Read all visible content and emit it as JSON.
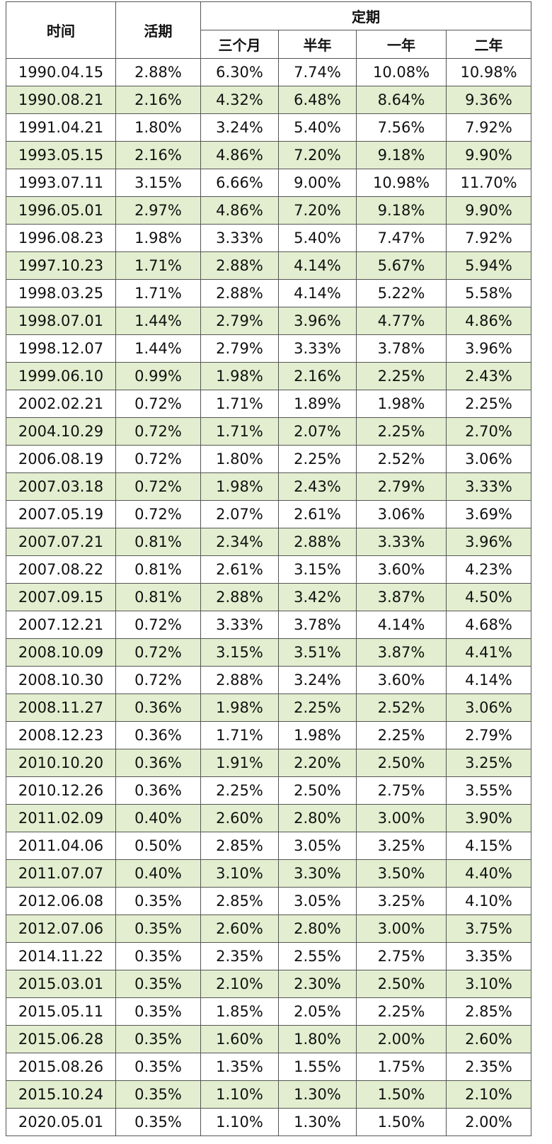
{
  "table": {
    "header": {
      "time": "时间",
      "demand": "活期",
      "fixed": "定期",
      "terms": [
        "三个月",
        "半年",
        "一年",
        "二年"
      ]
    },
    "rows": [
      [
        "1990.04.15",
        "2.88%",
        "6.30%",
        "7.74%",
        "10.08%",
        "10.98%"
      ],
      [
        "1990.08.21",
        "2.16%",
        "4.32%",
        "6.48%",
        "8.64%",
        "9.36%"
      ],
      [
        "1991.04.21",
        "1.80%",
        "3.24%",
        "5.40%",
        "7.56%",
        "7.92%"
      ],
      [
        "1993.05.15",
        "2.16%",
        "4.86%",
        "7.20%",
        "9.18%",
        "9.90%"
      ],
      [
        "1993.07.11",
        "3.15%",
        "6.66%",
        "9.00%",
        "10.98%",
        "11.70%"
      ],
      [
        "1996.05.01",
        "2.97%",
        "4.86%",
        "7.20%",
        "9.18%",
        "9.90%"
      ],
      [
        "1996.08.23",
        "1.98%",
        "3.33%",
        "5.40%",
        "7.47%",
        "7.92%"
      ],
      [
        "1997.10.23",
        "1.71%",
        "2.88%",
        "4.14%",
        "5.67%",
        "5.94%"
      ],
      [
        "1998.03.25",
        "1.71%",
        "2.88%",
        "4.14%",
        "5.22%",
        "5.58%"
      ],
      [
        "1998.07.01",
        "1.44%",
        "2.79%",
        "3.96%",
        "4.77%",
        "4.86%"
      ],
      [
        "1998.12.07",
        "1.44%",
        "2.79%",
        "3.33%",
        "3.78%",
        "3.96%"
      ],
      [
        "1999.06.10",
        "0.99%",
        "1.98%",
        "2.16%",
        "2.25%",
        "2.43%"
      ],
      [
        "2002.02.21",
        "0.72%",
        "1.71%",
        "1.89%",
        "1.98%",
        "2.25%"
      ],
      [
        "2004.10.29",
        "0.72%",
        "1.71%",
        "2.07%",
        "2.25%",
        "2.70%"
      ],
      [
        "2006.08.19",
        "0.72%",
        "1.80%",
        "2.25%",
        "2.52%",
        "3.06%"
      ],
      [
        "2007.03.18",
        "0.72%",
        "1.98%",
        "2.43%",
        "2.79%",
        "3.33%"
      ],
      [
        "2007.05.19",
        "0.72%",
        "2.07%",
        "2.61%",
        "3.06%",
        "3.69%"
      ],
      [
        "2007.07.21",
        "0.81%",
        "2.34%",
        "2.88%",
        "3.33%",
        "3.96%"
      ],
      [
        "2007.08.22",
        "0.81%",
        "2.61%",
        "3.15%",
        "3.60%",
        "4.23%"
      ],
      [
        "2007.09.15",
        "0.81%",
        "2.88%",
        "3.42%",
        "3.87%",
        "4.50%"
      ],
      [
        "2007.12.21",
        "0.72%",
        "3.33%",
        "3.78%",
        "4.14%",
        "4.68%"
      ],
      [
        "2008.10.09",
        "0.72%",
        "3.15%",
        "3.51%",
        "3.87%",
        "4.41%"
      ],
      [
        "2008.10.30",
        "0.72%",
        "2.88%",
        "3.24%",
        "3.60%",
        "4.14%"
      ],
      [
        "2008.11.27",
        "0.36%",
        "1.98%",
        "2.25%",
        "2.52%",
        "3.06%"
      ],
      [
        "2008.12.23",
        "0.36%",
        "1.71%",
        "1.98%",
        "2.25%",
        "2.79%"
      ],
      [
        "2010.10.20",
        "0.36%",
        "1.91%",
        "2.20%",
        "2.50%",
        "3.25%"
      ],
      [
        "2010.12.26",
        "0.36%",
        "2.25%",
        "2.50%",
        "2.75%",
        "3.55%"
      ],
      [
        "2011.02.09",
        "0.40%",
        "2.60%",
        "2.80%",
        "3.00%",
        "3.90%"
      ],
      [
        "2011.04.06",
        "0.50%",
        "2.85%",
        "3.05%",
        "3.25%",
        "4.15%"
      ],
      [
        "2011.07.07",
        "0.40%",
        "3.10%",
        "3.30%",
        "3.50%",
        "4.40%"
      ],
      [
        "2012.06.08",
        "0.35%",
        "2.85%",
        "3.05%",
        "3.25%",
        "4.10%"
      ],
      [
        "2012.07.06",
        "0.35%",
        "2.60%",
        "2.80%",
        "3.00%",
        "3.75%"
      ],
      [
        "2014.11.22",
        "0.35%",
        "2.35%",
        "2.55%",
        "2.75%",
        "3.35%"
      ],
      [
        "2015.03.01",
        "0.35%",
        "2.10%",
        "2.30%",
        "2.50%",
        "3.10%"
      ],
      [
        "2015.05.11",
        "0.35%",
        "1.85%",
        "2.05%",
        "2.25%",
        "2.85%"
      ],
      [
        "2015.06.28",
        "0.35%",
        "1.60%",
        "1.80%",
        "2.00%",
        "2.60%"
      ],
      [
        "2015.08.26",
        "0.35%",
        "1.35%",
        "1.55%",
        "1.75%",
        "2.35%"
      ],
      [
        "2015.10.24",
        "0.35%",
        "1.10%",
        "1.30%",
        "1.50%",
        "2.10%"
      ],
      [
        "2020.05.01",
        "0.35%",
        "1.10%",
        "1.30%",
        "1.50%",
        "2.00%"
      ]
    ]
  }
}
